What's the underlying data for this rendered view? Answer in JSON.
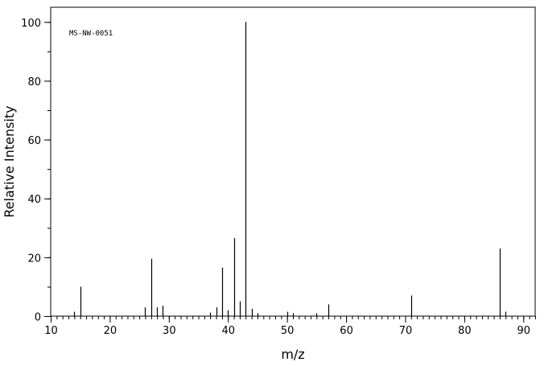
{
  "chart_data": {
    "type": "bar",
    "title": "",
    "annotation": "MS-NW-0051",
    "xlabel": "m/z",
    "ylabel": "Relative Intensity",
    "xlim": [
      10,
      92
    ],
    "ylim": [
      0,
      105
    ],
    "x_major_ticks": [
      10,
      20,
      30,
      40,
      50,
      60,
      70,
      80,
      90
    ],
    "x_minor_step": 1,
    "y_major_ticks": [
      0,
      20,
      40,
      60,
      80,
      100
    ],
    "y_minor_step": 10,
    "grid": false,
    "series": [
      {
        "peaks": [
          {
            "mz": 14,
            "intensity": 1.5
          },
          {
            "mz": 15,
            "intensity": 10.0
          },
          {
            "mz": 26,
            "intensity": 3.0
          },
          {
            "mz": 27,
            "intensity": 19.5
          },
          {
            "mz": 28,
            "intensity": 3.0
          },
          {
            "mz": 29,
            "intensity": 3.5
          },
          {
            "mz": 37,
            "intensity": 1.2
          },
          {
            "mz": 38,
            "intensity": 3.0
          },
          {
            "mz": 39,
            "intensity": 16.5
          },
          {
            "mz": 40,
            "intensity": 2.0
          },
          {
            "mz": 41,
            "intensity": 26.5
          },
          {
            "mz": 42,
            "intensity": 5.0
          },
          {
            "mz": 43,
            "intensity": 100.0
          },
          {
            "mz": 44,
            "intensity": 2.5
          },
          {
            "mz": 45,
            "intensity": 1.0
          },
          {
            "mz": 50,
            "intensity": 1.5
          },
          {
            "mz": 51,
            "intensity": 1.0
          },
          {
            "mz": 55,
            "intensity": 1.0
          },
          {
            "mz": 57,
            "intensity": 4.0
          },
          {
            "mz": 71,
            "intensity": 7.0
          },
          {
            "mz": 86,
            "intensity": 23.0
          },
          {
            "mz": 87,
            "intensity": 1.5
          }
        ]
      }
    ]
  }
}
